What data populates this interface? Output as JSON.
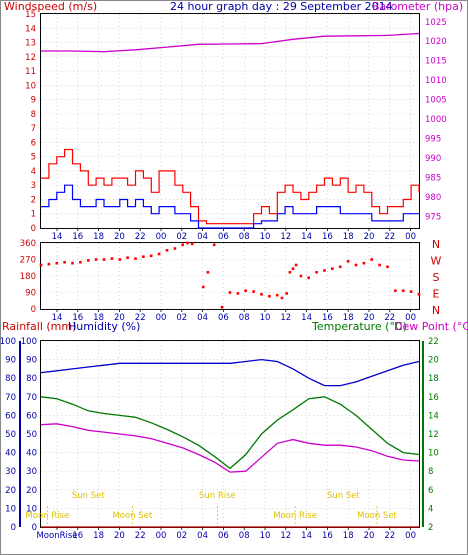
{
  "header": {
    "left_label": "Windspeed (m/s)",
    "title": "24 hour graph day : 29 September 2014",
    "right_label": "Barometer (hpa)"
  },
  "colors": {
    "wind_gust": "#ff0000",
    "wind_avg": "#0000ff",
    "barometer": "#cc00cc",
    "direction": "#ff0000",
    "humidity": "#0000cc",
    "temperature": "#007700",
    "dewpoint": "#cc00cc",
    "rainfall": "#cc0000",
    "sun": "#e0c000",
    "axis_blue": "#0000aa",
    "axis_green": "#007700"
  },
  "chart_data": [
    {
      "type": "line",
      "name": "wind-and-barometer",
      "left_axis": {
        "label": "Windspeed (m/s)",
        "ylim": [
          0,
          15
        ],
        "ticks": [
          0,
          1,
          2,
          3,
          4,
          5,
          6,
          7,
          8,
          9,
          10,
          11,
          12,
          13,
          14,
          15
        ]
      },
      "right_axis": {
        "label": "Barometer (hpa)",
        "ylim": [
          972,
          1027
        ],
        "ticks": [
          975,
          980,
          985,
          990,
          995,
          1000,
          1005,
          1010,
          1015,
          1020,
          1025
        ]
      },
      "x_ticks": [
        "14",
        "16",
        "18",
        "20",
        "22",
        "00",
        "02",
        "04",
        "06",
        "08",
        "10",
        "12",
        "14",
        "16",
        "18",
        "20",
        "22",
        "00"
      ],
      "grid": true,
      "series": [
        {
          "name": "Wind gust",
          "axis": "left",
          "x": [
            0,
            0.5,
            1,
            1.5,
            2,
            2.5,
            3,
            3.5,
            4,
            4.5,
            5,
            5.5,
            6,
            6.5,
            7,
            7.5,
            8,
            8.5,
            9,
            9.5,
            10,
            10.5,
            11,
            11.5,
            12,
            12.5,
            13,
            13.5,
            14,
            14.5,
            15,
            15.5,
            16,
            16.5,
            17,
            17.5,
            18,
            18.5,
            19,
            19.5,
            20,
            20.5,
            21,
            21.5,
            22,
            22.5,
            23,
            23.5,
            24
          ],
          "values": [
            3.5,
            4.5,
            5,
            5.5,
            4.5,
            4,
            3,
            3.5,
            3,
            3.5,
            3.5,
            3,
            4,
            3.5,
            2.5,
            4,
            4,
            3,
            2.5,
            1.5,
            0.5,
            0.3,
            0.3,
            0.3,
            0.3,
            0.3,
            0.3,
            1,
            1.5,
            1,
            2.5,
            3,
            2.5,
            2,
            2.5,
            3,
            3.5,
            3,
            3.5,
            2.5,
            3,
            2.5,
            1.5,
            1,
            1.5,
            1.5,
            2,
            3,
            2.5
          ]
        },
        {
          "name": "Wind average",
          "axis": "left",
          "x": [
            0,
            0.5,
            1,
            1.5,
            2,
            2.5,
            3,
            3.5,
            4,
            4.5,
            5,
            5.5,
            6,
            6.5,
            7,
            7.5,
            8,
            8.5,
            9,
            9.5,
            10,
            10.5,
            11,
            11.5,
            12,
            12.5,
            13,
            13.5,
            14,
            14.5,
            15,
            15.5,
            16,
            16.5,
            17,
            17.5,
            18,
            18.5,
            19,
            19.5,
            20,
            20.5,
            21,
            21.5,
            22,
            22.5,
            23,
            23.5,
            24
          ],
          "values": [
            1.5,
            2,
            2.5,
            3,
            2,
            1.5,
            1.5,
            2,
            1.5,
            1.5,
            2,
            1.5,
            2,
            1.5,
            1,
            1.5,
            1.5,
            1,
            1,
            0.5,
            0,
            0,
            0,
            0,
            0,
            0,
            0,
            0.3,
            0.5,
            0.5,
            1,
            1.5,
            1,
            1,
            1,
            1.5,
            1.5,
            1.5,
            1,
            1,
            1,
            1,
            0.5,
            0.5,
            0.5,
            0.5,
            1,
            1,
            1
          ]
        },
        {
          "name": "Barometer",
          "axis": "right",
          "x": [
            0,
            2,
            4,
            6,
            8,
            10,
            12,
            14,
            16,
            18,
            20,
            22,
            24
          ],
          "values": [
            1017.5,
            1017.5,
            1017.3,
            1017.8,
            1018.5,
            1019.2,
            1019.3,
            1019.4,
            1020.5,
            1021.3,
            1021.4,
            1021.5,
            1022
          ]
        }
      ]
    },
    {
      "type": "scatter",
      "name": "wind-direction",
      "left_axis": {
        "ylim": [
          0,
          360
        ],
        "ticks": [
          0,
          90,
          180,
          270,
          360
        ]
      },
      "right_axis": {
        "labels": [
          "N",
          "W",
          "S",
          "E",
          "N"
        ]
      },
      "x_ticks": [
        "14",
        "16",
        "18",
        "20",
        "22",
        "00",
        "02",
        "04",
        "06",
        "08",
        "10",
        "12",
        "14",
        "16",
        "18",
        "20",
        "22",
        "00"
      ],
      "series": [
        {
          "name": "Wind direction",
          "x": [
            0,
            0.5,
            1,
            1.5,
            2,
            2.5,
            3,
            3.5,
            4,
            4.5,
            5,
            5.5,
            6,
            6.5,
            7,
            7.5,
            8,
            8.5,
            9,
            9.3,
            9.6,
            10.3,
            10.6,
            11,
            11.5,
            12,
            12.5,
            13,
            13.5,
            14,
            14.5,
            15,
            15.3,
            15.6,
            15.8,
            16,
            16.2,
            16.5,
            17,
            17.5,
            18,
            18.5,
            19,
            19.5,
            20,
            20.5,
            21,
            21.5,
            22,
            22.5,
            23,
            23.5,
            24
          ],
          "values": [
            240,
            245,
            250,
            255,
            250,
            255,
            265,
            270,
            270,
            275,
            270,
            280,
            275,
            285,
            290,
            300,
            320,
            330,
            350,
            360,
            355,
            120,
            200,
            350,
            10,
            90,
            85,
            100,
            95,
            80,
            70,
            75,
            60,
            85,
            200,
            220,
            240,
            180,
            170,
            200,
            210,
            220,
            230,
            260,
            240,
            250,
            270,
            240,
            230,
            100,
            100,
            95,
            80
          ]
        }
      ]
    },
    {
      "type": "line",
      "name": "temperature-humidity",
      "left_axis": {
        "label": "Rainfall (mm)",
        "ylim": [
          0,
          100
        ],
        "ticks": [
          0,
          10,
          20,
          30,
          40,
          50,
          60,
          70,
          80,
          90,
          100
        ]
      },
      "left_axis_2": {
        "label": "Humidity (%)",
        "ylim": [
          0,
          100
        ],
        "ticks": [
          0,
          10,
          20,
          30,
          40,
          50,
          60,
          70,
          80,
          90,
          100
        ]
      },
      "right_axis": {
        "label": "Temperature (°C)",
        "ylim": [
          2,
          22
        ],
        "ticks": [
          2,
          4,
          6,
          8,
          10,
          12,
          14,
          16,
          18,
          20,
          22
        ]
      },
      "right_label_2": "Dew Point (°C)",
      "x_ticks": [
        "MoonRise",
        "16",
        "18",
        "20",
        "22",
        "00",
        "02",
        "04",
        "06",
        "08",
        "10",
        "12",
        "14",
        "16",
        "18",
        "20",
        "22",
        "00"
      ],
      "grid": true,
      "annotations": [
        {
          "label": "Sun Set",
          "x": 4.5,
          "row": "top"
        },
        {
          "label": "Sun Rise",
          "x": 16.8,
          "row": "top"
        },
        {
          "label": "Sun Set",
          "x": 28.8,
          "row": "top"
        },
        {
          "label": "Moon Rise",
          "x": 0.6,
          "row": "bottom"
        },
        {
          "label": "Moon Set",
          "x": 8.7,
          "row": "bottom"
        },
        {
          "label": "Moon Rise",
          "x": 24.2,
          "row": "bottom"
        },
        {
          "label": "Moon Set",
          "x": 32.0,
          "row": "bottom"
        }
      ],
      "series": [
        {
          "name": "Humidity",
          "axis": "left",
          "x": [
            0,
            1,
            2,
            3,
            4,
            5,
            6,
            7,
            8,
            9,
            10,
            11,
            12,
            13,
            14,
            15,
            16,
            17,
            18,
            19,
            20,
            21,
            22,
            23,
            24
          ],
          "values": [
            83,
            84,
            85,
            86,
            87,
            88,
            88,
            88,
            88,
            88,
            88,
            88,
            88,
            89,
            90,
            89,
            85,
            80,
            76,
            76,
            78,
            81,
            84,
            87,
            89
          ]
        },
        {
          "name": "Temperature",
          "axis": "right",
          "x": [
            0,
            1,
            2,
            3,
            4,
            5,
            6,
            7,
            8,
            9,
            10,
            11,
            12,
            13,
            14,
            15,
            16,
            17,
            18,
            19,
            20,
            21,
            22,
            23,
            24
          ],
          "values": [
            16,
            15.8,
            15.2,
            14.5,
            14.2,
            14,
            13.8,
            13.2,
            12.5,
            11.7,
            10.8,
            9.6,
            8.3,
            9.8,
            12,
            13.5,
            14.6,
            15.8,
            16,
            15.2,
            14,
            12.5,
            11,
            10,
            9.8
          ]
        },
        {
          "name": "Dew Point",
          "axis": "right",
          "x": [
            0,
            1,
            2,
            3,
            4,
            5,
            6,
            7,
            8,
            9,
            10,
            11,
            12,
            13,
            14,
            15,
            16,
            17,
            18,
            19,
            20,
            21,
            22,
            23,
            24
          ],
          "values": [
            13,
            13.1,
            12.8,
            12.4,
            12.2,
            12,
            11.8,
            11.5,
            11,
            10.5,
            9.8,
            9,
            7.9,
            8,
            9.5,
            11,
            11.4,
            11,
            10.8,
            10.8,
            10.6,
            10.2,
            9.6,
            9.2,
            9.1
          ]
        },
        {
          "name": "Rainfall",
          "axis": "left",
          "x": [
            0,
            24
          ],
          "values": [
            0,
            0
          ]
        }
      ]
    }
  ]
}
